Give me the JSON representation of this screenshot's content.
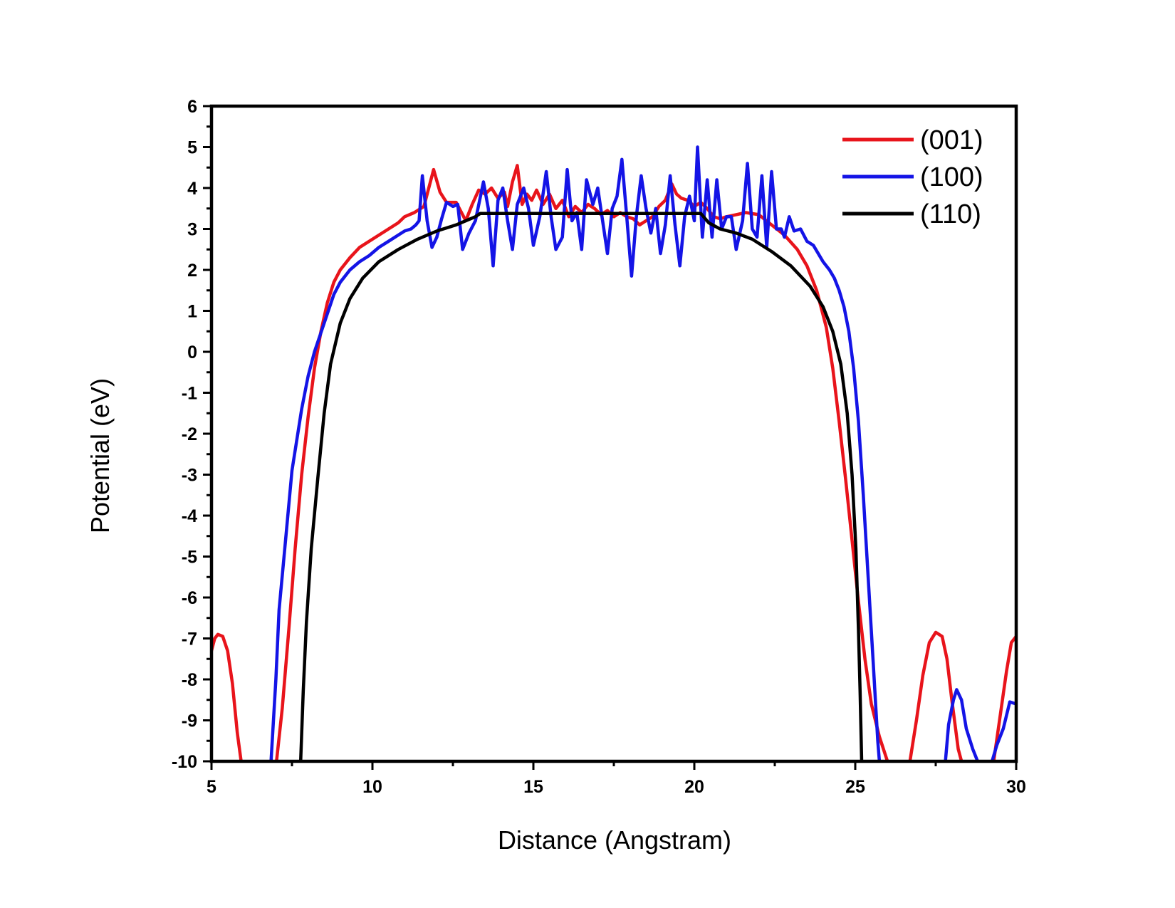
{
  "chart_data": {
    "type": "line",
    "title": "",
    "xlabel": "Distance (Angstram)",
    "ylabel": "Potential (eV)",
    "xlim": [
      5,
      30
    ],
    "ylim": [
      -10,
      6
    ],
    "xticks": [
      5,
      10,
      15,
      20,
      25,
      30
    ],
    "yticks": [
      6,
      5,
      4,
      3,
      2,
      1,
      0,
      -1,
      -2,
      -3,
      -4,
      -5,
      -6,
      -7,
      -8,
      -9,
      -10
    ],
    "grid": false,
    "legend_position": "top-right",
    "series": [
      {
        "name": "(001)",
        "color": "#e8141b",
        "segments": [
          [
            [
              5.0,
              -7.3
            ],
            [
              5.1,
              -7.0
            ],
            [
              5.2,
              -6.9
            ],
            [
              5.35,
              -6.95
            ],
            [
              5.5,
              -7.3
            ],
            [
              5.65,
              -8.1
            ],
            [
              5.8,
              -9.3
            ],
            [
              5.92,
              -10.0
            ]
          ],
          [
            [
              7.02,
              -10.0
            ],
            [
              7.2,
              -8.7
            ],
            [
              7.4,
              -6.8
            ],
            [
              7.6,
              -4.8
            ],
            [
              7.8,
              -3.0
            ],
            [
              8.0,
              -1.6
            ],
            [
              8.2,
              -0.4
            ],
            [
              8.4,
              0.5
            ],
            [
              8.6,
              1.2
            ],
            [
              8.8,
              1.7
            ],
            [
              9.0,
              2.0
            ],
            [
              9.3,
              2.3
            ],
            [
              9.6,
              2.55
            ],
            [
              10.0,
              2.75
            ],
            [
              10.4,
              2.95
            ],
            [
              10.8,
              3.15
            ],
            [
              11.0,
              3.3
            ],
            [
              11.3,
              3.4
            ],
            [
              11.6,
              3.55
            ],
            [
              11.9,
              4.45
            ],
            [
              12.1,
              3.9
            ],
            [
              12.3,
              3.65
            ],
            [
              12.6,
              3.65
            ],
            [
              12.9,
              3.2
            ],
            [
              13.1,
              3.6
            ],
            [
              13.3,
              3.95
            ],
            [
              13.5,
              3.85
            ],
            [
              13.7,
              4.0
            ],
            [
              13.9,
              3.75
            ],
            [
              14.1,
              3.9
            ],
            [
              14.2,
              3.55
            ],
            [
              14.35,
              4.15
            ],
            [
              14.5,
              4.55
            ],
            [
              14.65,
              3.6
            ],
            [
              14.8,
              3.85
            ],
            [
              14.95,
              3.7
            ],
            [
              15.1,
              3.95
            ],
            [
              15.3,
              3.6
            ],
            [
              15.5,
              3.85
            ],
            [
              15.7,
              3.5
            ],
            [
              15.9,
              3.7
            ],
            [
              16.1,
              3.3
            ],
            [
              16.3,
              3.55
            ],
            [
              16.5,
              3.4
            ],
            [
              16.7,
              3.6
            ],
            [
              16.9,
              3.5
            ],
            [
              17.1,
              3.35
            ],
            [
              17.3,
              3.45
            ],
            [
              17.5,
              3.3
            ],
            [
              17.7,
              3.4
            ],
            [
              17.9,
              3.3
            ],
            [
              18.1,
              3.25
            ],
            [
              18.3,
              3.1
            ],
            [
              18.5,
              3.2
            ],
            [
              18.7,
              3.3
            ],
            [
              18.9,
              3.55
            ],
            [
              19.1,
              3.7
            ],
            [
              19.3,
              4.1
            ],
            [
              19.45,
              3.85
            ],
            [
              19.6,
              3.75
            ],
            [
              19.8,
              3.7
            ],
            [
              20.0,
              3.55
            ],
            [
              20.2,
              3.65
            ],
            [
              20.4,
              3.5
            ],
            [
              20.6,
              3.3
            ],
            [
              20.8,
              3.25
            ],
            [
              21.0,
              3.3
            ],
            [
              21.3,
              3.35
            ],
            [
              21.6,
              3.4
            ],
            [
              22.0,
              3.35
            ],
            [
              22.4,
              3.1
            ],
            [
              22.8,
              2.85
            ],
            [
              23.2,
              2.5
            ],
            [
              23.5,
              2.1
            ],
            [
              23.8,
              1.5
            ],
            [
              24.1,
              0.6
            ],
            [
              24.3,
              -0.4
            ],
            [
              24.5,
              -1.7
            ],
            [
              24.7,
              -3.1
            ],
            [
              24.9,
              -4.6
            ],
            [
              25.1,
              -6.1
            ],
            [
              25.3,
              -7.5
            ],
            [
              25.5,
              -8.6
            ],
            [
              25.75,
              -9.4
            ],
            [
              26.0,
              -10.0
            ]
          ],
          [
            [
              26.7,
              -10.0
            ],
            [
              26.9,
              -9.0
            ],
            [
              27.1,
              -7.9
            ],
            [
              27.3,
              -7.1
            ],
            [
              27.5,
              -6.85
            ],
            [
              27.7,
              -6.95
            ],
            [
              27.85,
              -7.5
            ],
            [
              28.0,
              -8.5
            ],
            [
              28.2,
              -9.7
            ],
            [
              28.3,
              -10.0
            ]
          ],
          [
            [
              29.3,
              -10.0
            ],
            [
              29.5,
              -8.9
            ],
            [
              29.7,
              -7.8
            ],
            [
              29.85,
              -7.1
            ],
            [
              30.0,
              -6.95
            ]
          ]
        ]
      },
      {
        "name": "(100)",
        "color": "#1414e6",
        "segments": [
          [
            [
              6.85,
              -10.0
            ],
            [
              7.0,
              -8.0
            ],
            [
              7.1,
              -6.3
            ],
            [
              7.3,
              -4.6
            ],
            [
              7.5,
              -2.9
            ],
            [
              7.8,
              -1.4
            ],
            [
              8.0,
              -0.6
            ],
            [
              8.2,
              0.0
            ],
            [
              8.5,
              0.7
            ],
            [
              8.8,
              1.4
            ],
            [
              9.0,
              1.7
            ],
            [
              9.3,
              2.0
            ],
            [
              9.6,
              2.2
            ],
            [
              9.9,
              2.35
            ],
            [
              10.2,
              2.55
            ],
            [
              10.5,
              2.7
            ],
            [
              10.8,
              2.85
            ],
            [
              11.0,
              2.95
            ],
            [
              11.2,
              3.0
            ],
            [
              11.35,
              3.1
            ],
            [
              11.45,
              3.2
            ],
            [
              11.55,
              4.3
            ],
            [
              11.7,
              3.2
            ],
            [
              11.85,
              2.55
            ],
            [
              12.0,
              2.8
            ],
            [
              12.15,
              3.25
            ],
            [
              12.3,
              3.65
            ],
            [
              12.5,
              3.55
            ],
            [
              12.65,
              3.6
            ],
            [
              12.8,
              2.5
            ],
            [
              13.0,
              2.9
            ],
            [
              13.2,
              3.2
            ],
            [
              13.45,
              4.15
            ],
            [
              13.6,
              3.5
            ],
            [
              13.75,
              2.1
            ],
            [
              13.9,
              3.7
            ],
            [
              14.05,
              4.0
            ],
            [
              14.2,
              3.2
            ],
            [
              14.35,
              2.5
            ],
            [
              14.5,
              3.6
            ],
            [
              14.7,
              4.0
            ],
            [
              14.85,
              3.5
            ],
            [
              15.0,
              2.6
            ],
            [
              15.2,
              3.3
            ],
            [
              15.4,
              4.4
            ],
            [
              15.55,
              3.3
            ],
            [
              15.7,
              2.5
            ],
            [
              15.9,
              2.8
            ],
            [
              16.05,
              4.45
            ],
            [
              16.2,
              3.2
            ],
            [
              16.35,
              3.4
            ],
            [
              16.5,
              2.5
            ],
            [
              16.65,
              4.2
            ],
            [
              16.85,
              3.6
            ],
            [
              17.0,
              4.0
            ],
            [
              17.15,
              3.2
            ],
            [
              17.3,
              2.4
            ],
            [
              17.45,
              3.5
            ],
            [
              17.6,
              3.8
            ],
            [
              17.75,
              4.7
            ],
            [
              17.9,
              3.3
            ],
            [
              18.05,
              1.85
            ],
            [
              18.2,
              3.3
            ],
            [
              18.35,
              4.3
            ],
            [
              18.5,
              3.5
            ],
            [
              18.65,
              2.9
            ],
            [
              18.8,
              3.5
            ],
            [
              18.95,
              2.4
            ],
            [
              19.1,
              3.1
            ],
            [
              19.25,
              4.3
            ],
            [
              19.4,
              3.1
            ],
            [
              19.55,
              2.1
            ],
            [
              19.7,
              3.3
            ],
            [
              19.85,
              3.8
            ],
            [
              20.0,
              3.2
            ],
            [
              20.1,
              5.0
            ],
            [
              20.25,
              2.8
            ],
            [
              20.4,
              4.2
            ],
            [
              20.55,
              2.8
            ],
            [
              20.7,
              4.2
            ],
            [
              20.85,
              3.0
            ],
            [
              21.0,
              3.3
            ],
            [
              21.15,
              3.3
            ],
            [
              21.3,
              2.5
            ],
            [
              21.5,
              3.2
            ],
            [
              21.65,
              4.6
            ],
            [
              21.8,
              3.0
            ],
            [
              21.95,
              2.8
            ],
            [
              22.1,
              4.3
            ],
            [
              22.25,
              2.55
            ],
            [
              22.4,
              4.4
            ],
            [
              22.55,
              3.0
            ],
            [
              22.7,
              3.0
            ],
            [
              22.8,
              2.8
            ],
            [
              22.95,
              3.3
            ],
            [
              23.1,
              2.95
            ],
            [
              23.3,
              3.0
            ],
            [
              23.5,
              2.7
            ],
            [
              23.7,
              2.6
            ],
            [
              23.85,
              2.4
            ],
            [
              24.0,
              2.2
            ],
            [
              24.2,
              2.0
            ],
            [
              24.35,
              1.8
            ],
            [
              24.5,
              1.5
            ],
            [
              24.65,
              1.1
            ],
            [
              24.8,
              0.5
            ],
            [
              24.95,
              -0.4
            ],
            [
              25.1,
              -1.7
            ],
            [
              25.25,
              -3.5
            ],
            [
              25.4,
              -5.5
            ],
            [
              25.55,
              -7.5
            ],
            [
              25.7,
              -9.5
            ],
            [
              25.75,
              -10.0
            ]
          ],
          [
            [
              27.8,
              -10.0
            ],
            [
              27.9,
              -9.1
            ],
            [
              28.05,
              -8.5
            ],
            [
              28.15,
              -8.25
            ],
            [
              28.3,
              -8.5
            ],
            [
              28.45,
              -9.2
            ],
            [
              28.65,
              -9.7
            ],
            [
              28.8,
              -10.0
            ]
          ],
          [
            [
              29.25,
              -10.0
            ],
            [
              29.4,
              -9.6
            ],
            [
              29.6,
              -9.2
            ],
            [
              29.8,
              -8.55
            ],
            [
              30.0,
              -8.6
            ],
            [
              30.05,
              -8.95
            ]
          ]
        ]
      },
      {
        "name": "(110)",
        "color": "#000000",
        "segments": [
          [
            [
              7.77,
              -10.0
            ],
            [
              7.85,
              -8.3
            ],
            [
              7.95,
              -6.6
            ],
            [
              8.1,
              -4.8
            ],
            [
              8.3,
              -3.1
            ],
            [
              8.5,
              -1.5
            ],
            [
              8.7,
              -0.3
            ],
            [
              9.0,
              0.7
            ],
            [
              9.3,
              1.3
            ],
            [
              9.7,
              1.8
            ],
            [
              10.2,
              2.2
            ],
            [
              10.8,
              2.5
            ],
            [
              11.4,
              2.75
            ],
            [
              12.0,
              2.95
            ],
            [
              12.6,
              3.1
            ],
            [
              12.9,
              3.2
            ],
            [
              13.2,
              3.3
            ],
            [
              13.35,
              3.38
            ],
            [
              20.2,
              3.38
            ],
            [
              20.45,
              3.15
            ],
            [
              20.8,
              3.0
            ],
            [
              21.3,
              2.9
            ],
            [
              21.8,
              2.75
            ],
            [
              22.4,
              2.45
            ],
            [
              23.0,
              2.1
            ],
            [
              23.6,
              1.6
            ],
            [
              24.0,
              1.1
            ],
            [
              24.3,
              0.5
            ],
            [
              24.55,
              -0.3
            ],
            [
              24.75,
              -1.5
            ],
            [
              24.9,
              -3.0
            ],
            [
              25.02,
              -4.8
            ],
            [
              25.1,
              -6.8
            ],
            [
              25.15,
              -8.3
            ],
            [
              25.2,
              -10.0
            ]
          ]
        ]
      }
    ]
  }
}
